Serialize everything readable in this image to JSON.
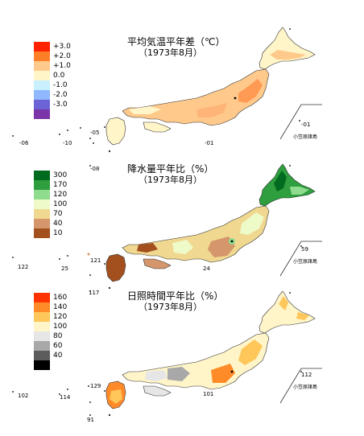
{
  "panels": [
    {
      "id": "temp",
      "title": "平均気温平年差（℃）",
      "subtitle": "（1973年8月）",
      "legend": [
        {
          "label": "+3.0",
          "color": "#ff2200"
        },
        {
          "label": "+2.0",
          "color": "#ff7f27"
        },
        {
          "label": "+1.0",
          "color": "#ffc98b"
        },
        {
          "label": "0.0",
          "color": "#fff5c8"
        },
        {
          "label": "-1.0",
          "color": "#c8f0ff"
        },
        {
          "label": "-2.0",
          "color": "#8fb8ff"
        },
        {
          "label": "-3.0",
          "color": "#6b63d6"
        },
        {
          "label": "",
          "color": "#7b35a8"
        }
      ],
      "stations": {
        "west_island": "-06",
        "south_island": "-10",
        "ryukyu_east": "-05",
        "pacific_south": "-01",
        "ogasawara_value": "-01"
      },
      "ogasawara_label": "小笠原諸島"
    },
    {
      "id": "precip",
      "title": "降水量平年比（%）",
      "subtitle": "（1973年8月）",
      "legend": [
        {
          "label": "300",
          "color": "#006b1e"
        },
        {
          "label": "170",
          "color": "#2e9e3e"
        },
        {
          "label": "120",
          "color": "#8fdc8f"
        },
        {
          "label": "100",
          "color": "#eefbc8"
        },
        {
          "label": "70",
          "color": "#f0d890"
        },
        {
          "label": "40",
          "color": "#d4966a"
        },
        {
          "label": "10",
          "color": "#a4501e"
        }
      ],
      "stations": {
        "top_left": "-08",
        "west_island": "122",
        "south_island": "25",
        "ryukyu_east": "121",
        "pacific_south": "24",
        "ogasawara_value": "59"
      },
      "ogasawara_label": "小笠原諸島"
    },
    {
      "id": "sun",
      "title": "日照時間平年比（%）",
      "subtitle": "（1973年8月）",
      "legend": [
        {
          "label": "160",
          "color": "#ff3300"
        },
        {
          "label": "140",
          "color": "#ff8a28"
        },
        {
          "label": "120",
          "color": "#ffc65a"
        },
        {
          "label": "100",
          "color": "#fff5c8"
        },
        {
          "label": "80",
          "color": "#e6e6e6"
        },
        {
          "label": "60",
          "color": "#a8a8a8"
        },
        {
          "label": "40",
          "color": "#5c5c5c"
        },
        {
          "label": "",
          "color": "#000000"
        }
      ],
      "stations": {
        "top_left": "117",
        "west_island": "102",
        "south_island": "114",
        "ryukyu_east": "129",
        "pacific_south": "101",
        "ogasawara_value": "112",
        "bottom": "91"
      },
      "ogasawara_label": "小笠原諸島"
    }
  ]
}
